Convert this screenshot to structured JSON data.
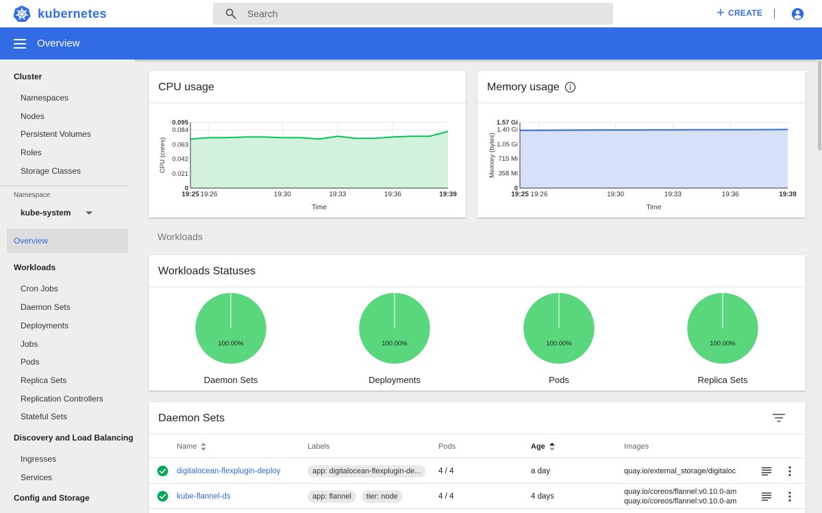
{
  "app": {
    "brand": "kubernetes"
  },
  "search": {
    "placeholder": "Search"
  },
  "topbar": {
    "create_label": "CREATE"
  },
  "header": {
    "title": "Overview"
  },
  "sidebar": {
    "cluster_title": "Cluster",
    "cluster_items": [
      "Namespaces",
      "Nodes",
      "Persistent Volumes",
      "Roles",
      "Storage Classes"
    ],
    "namespace_label": "Namespace",
    "namespace_value": "kube-system",
    "overview": "Overview",
    "workloads_title": "Workloads",
    "workloads_items": [
      "Cron Jobs",
      "Daemon Sets",
      "Deployments",
      "Jobs",
      "Pods",
      "Replica Sets",
      "Replication Controllers",
      "Stateful Sets"
    ],
    "discovery_title": "Discovery and Load Balancing",
    "discovery_items": [
      "Ingresses",
      "Services"
    ],
    "config_title": "Config and Storage"
  },
  "cpu": {
    "title": "CPU usage",
    "chart_data": {
      "type": "area",
      "x": [
        "19:25",
        "19:26",
        "19:27",
        "19:28",
        "19:29",
        "19:30",
        "19:31",
        "19:32",
        "19:33",
        "19:34",
        "19:35",
        "19:36",
        "19:37",
        "19:38",
        "19:39"
      ],
      "values": [
        0.071,
        0.073,
        0.073,
        0.074,
        0.074,
        0.073,
        0.073,
        0.071,
        0.075,
        0.072,
        0.072,
        0.074,
        0.075,
        0.075,
        0.082
      ],
      "xticks": [
        "19:25",
        "19:26",
        "19:30",
        "19:33",
        "19:36",
        "19:39"
      ],
      "yticks": [
        "0",
        "0.021",
        "0.042",
        "0.063",
        "0.084",
        "0.095"
      ],
      "ytick_values": [
        0,
        0.021,
        0.042,
        0.063,
        0.084,
        0.095
      ],
      "ylim": [
        0,
        0.095
      ],
      "xlabel": "Time",
      "ylabel": "CPU (cores)",
      "color": "#00c752",
      "fill": "#d3f2dd"
    }
  },
  "memory": {
    "title": "Memory usage",
    "chart_data": {
      "type": "area",
      "x": [
        "19:25",
        "19:26",
        "19:27",
        "19:28",
        "19:29",
        "19:30",
        "19:31",
        "19:32",
        "19:33",
        "19:34",
        "19:35",
        "19:36",
        "19:37",
        "19:38",
        "19:39"
      ],
      "values": [
        1.38,
        1.382,
        1.384,
        1.386,
        1.388,
        1.39,
        1.391,
        1.392,
        1.393,
        1.394,
        1.395,
        1.396,
        1.397,
        1.398,
        1.4
      ],
      "xticks": [
        "19:25",
        "19:26",
        "19:30",
        "19:33",
        "19:36",
        "19:39"
      ],
      "yticks": [
        "0",
        "358 Mi",
        "715 Mi",
        "1.05 Gi",
        "1.40 Gi",
        "1.57 Gi"
      ],
      "ytick_values": [
        0,
        0.35,
        0.7,
        1.05,
        1.4,
        1.57
      ],
      "ylim": [
        0,
        1.57
      ],
      "xlabel": "Time",
      "ylabel": "Memory (bytes)",
      "color": "#326ce5",
      "fill": "#d6e0f9"
    }
  },
  "workloads_section": "Workloads",
  "statuses": {
    "title": "Workloads Statuses",
    "chart_data": [
      {
        "type": "pie",
        "label": "Daemon Sets",
        "percent": 100,
        "percent_label": "100.00%"
      },
      {
        "type": "pie",
        "label": "Deployments",
        "percent": 100,
        "percent_label": "100.00%"
      },
      {
        "type": "pie",
        "label": "Pods",
        "percent": 100,
        "percent_label": "100.00%"
      },
      {
        "type": "pie",
        "label": "Replica Sets",
        "percent": 100,
        "percent_label": "100.00%"
      }
    ],
    "pie_color": "#5ad67d"
  },
  "daemon_sets": {
    "title": "Daemon Sets",
    "columns": {
      "name": "Name",
      "labels": "Labels",
      "pods": "Pods",
      "age": "Age",
      "images": "Images"
    },
    "rows": [
      {
        "name": "digitalocean-flexplugin-deploy",
        "labels": [
          "app: digitalocean-flexplugin-de..."
        ],
        "pods": "4 / 4",
        "age": "a day",
        "images": [
          "quay.io/external_storage/digitaloc"
        ]
      },
      {
        "name": "kube-flannel-ds",
        "labels": [
          "app: flannel",
          "tier: node"
        ],
        "pods": "4 / 4",
        "age": "4 days",
        "images": [
          "quay.io/coreos/flannel:v0.10.0-am",
          "quay.io/coreos/flannel:v0.10.0-am"
        ]
      }
    ]
  },
  "colors": {
    "brand": "#326ce5",
    "success": "#00a650"
  }
}
